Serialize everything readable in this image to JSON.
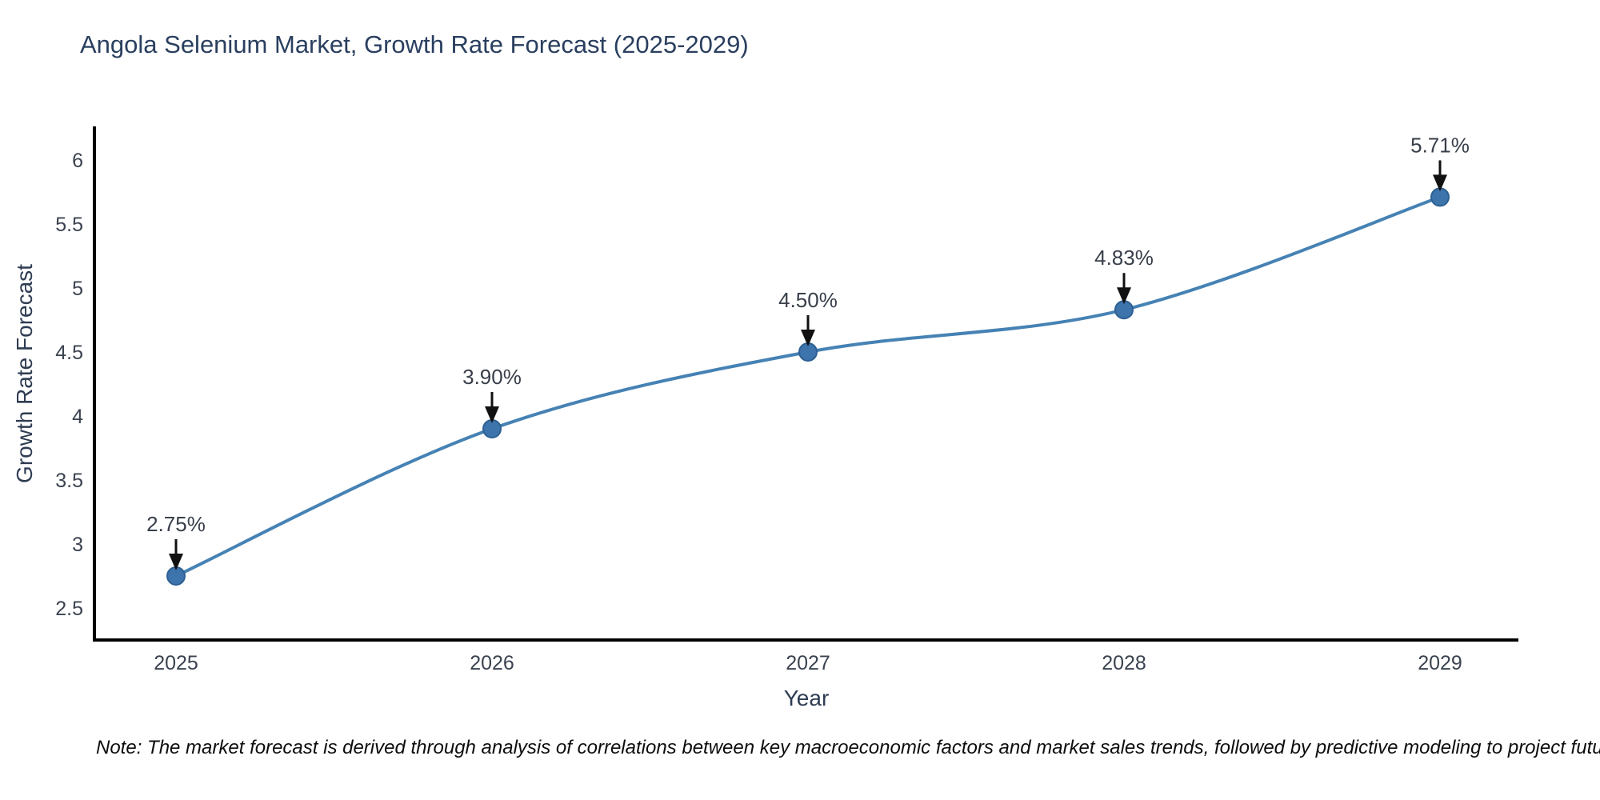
{
  "title": "Angola Selenium Market, Growth Rate Forecast (2025-2029)",
  "footnote": "Note: The market forecast is derived through analysis of correlations between key macroeconomic factors and market sales trends, followed by predictive modeling to project future sales",
  "chart_data": {
    "type": "line",
    "title": "Angola Selenium Market, Growth Rate Forecast (2025-2029)",
    "xlabel": "Year",
    "ylabel": "Growth Rate Forecast",
    "x": [
      2025,
      2026,
      2027,
      2028,
      2029
    ],
    "series": [
      {
        "name": "Growth Rate Forecast",
        "values": [
          2.75,
          3.9,
          4.5,
          4.83,
          5.71
        ],
        "point_labels": [
          "2.75%",
          "3.90%",
          "4.50%",
          "4.83%",
          "5.71%"
        ]
      }
    ],
    "ylim": [
      2.25,
      6.25
    ],
    "yticks": [
      2.5,
      3,
      3.5,
      4,
      4.5,
      5,
      5.5,
      6
    ],
    "ytick_labels": [
      "2.5",
      "3",
      "3.5",
      "4",
      "4.5",
      "5",
      "5.5",
      "6"
    ],
    "xtick_labels": [
      "2025",
      "2026",
      "2027",
      "2028",
      "2029"
    ],
    "grid": false,
    "legend": "none",
    "line_shape": "spline",
    "colors": {
      "line": "#4682b4",
      "marker_fill": "#3c74ab",
      "marker_edge": "#2e5f92",
      "axis_line": "#000000",
      "tick_text": "#3b4350",
      "annotation_text": "#383f4a",
      "annotation_arrow": "#111111"
    }
  }
}
